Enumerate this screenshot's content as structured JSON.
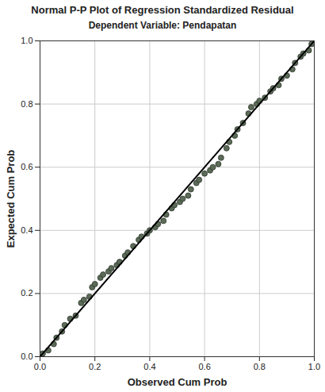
{
  "chart_data": {
    "type": "scatter",
    "title": "Normal P-P Plot of Regression Standardized Residual",
    "subtitle": "Dependent Variable: Pendapatan",
    "x_label": "Observed Cum Prob",
    "y_label": "Expected Cum Prob",
    "xlim": [
      0,
      1
    ],
    "ylim": [
      0,
      1
    ],
    "xticks": [
      {
        "value": 0,
        "label": "0.0"
      },
      0.2,
      0.4,
      0.6,
      0.8,
      {
        "value": 1,
        "label": "1.0"
      }
    ],
    "yticks": [
      {
        "value": 0,
        "label": "0.0"
      },
      0.2,
      0.4,
      0.6,
      0.8,
      {
        "value": 1,
        "label": "1.0"
      }
    ],
    "grid": true,
    "series": [
      {
        "type": "scatter",
        "marker": "circle",
        "color": "#5b6b57",
        "x": [
          0.01,
          0.03,
          0.05,
          0.06,
          0.08,
          0.09,
          0.11,
          0.13,
          0.15,
          0.16,
          0.18,
          0.19,
          0.2,
          0.22,
          0.23,
          0.25,
          0.26,
          0.28,
          0.29,
          0.31,
          0.32,
          0.34,
          0.36,
          0.37,
          0.39,
          0.4,
          0.42,
          0.43,
          0.45,
          0.46,
          0.48,
          0.49,
          0.51,
          0.52,
          0.54,
          0.55,
          0.57,
          0.58,
          0.6,
          0.62,
          0.63,
          0.65,
          0.66,
          0.68,
          0.69,
          0.71,
          0.72,
          0.74,
          0.76,
          0.77,
          0.79,
          0.8,
          0.82,
          0.84,
          0.85,
          0.87,
          0.88,
          0.9,
          0.92,
          0.93,
          0.95,
          0.96,
          0.98,
          0.99
        ],
        "values": [
          0.01,
          0.02,
          0.04,
          0.06,
          0.08,
          0.1,
          0.12,
          0.13,
          0.17,
          0.18,
          0.19,
          0.22,
          0.23,
          0.25,
          0.26,
          0.27,
          0.28,
          0.29,
          0.3,
          0.32,
          0.33,
          0.35,
          0.37,
          0.38,
          0.39,
          0.4,
          0.41,
          0.42,
          0.43,
          0.45,
          0.47,
          0.48,
          0.49,
          0.5,
          0.51,
          0.53,
          0.55,
          0.56,
          0.58,
          0.59,
          0.6,
          0.61,
          0.63,
          0.66,
          0.68,
          0.7,
          0.72,
          0.74,
          0.77,
          0.79,
          0.8,
          0.81,
          0.82,
          0.84,
          0.85,
          0.86,
          0.88,
          0.89,
          0.91,
          0.93,
          0.95,
          0.96,
          0.97,
          0.99
        ]
      },
      {
        "type": "line",
        "line_style": "solid",
        "color": "#000000",
        "x": [
          0,
          1
        ],
        "values": [
          0,
          1
        ]
      }
    ]
  }
}
